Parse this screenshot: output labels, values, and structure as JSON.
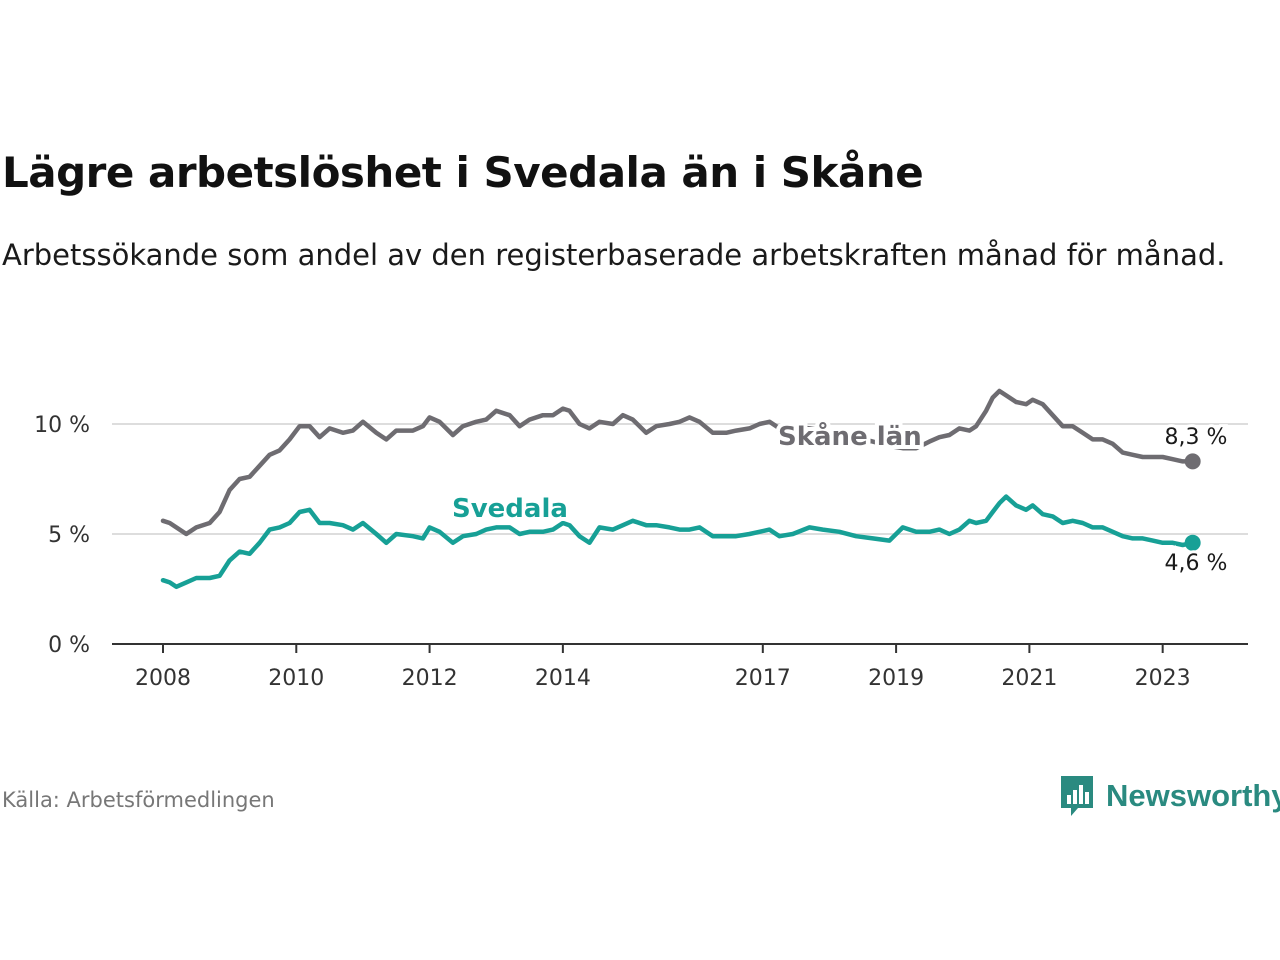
{
  "title": "Lägre arbetslöshet i Svedala än i Skåne",
  "subtitle": "Arbetssökande som andel av den registerbaserade arbetskraften månad för månad.",
  "source": "Källa: Arbetsförmedlingen",
  "brand": "Newsworthy",
  "colors": {
    "skane": "#6e6c71",
    "svedala": "#17a096",
    "grid": "#dddddd",
    "axis": "#333333",
    "brand": "#2a8a80"
  },
  "chart_data": {
    "type": "line",
    "title": "Lägre arbetslöshet i Svedala än i Skåne",
    "xlabel": "",
    "ylabel": "",
    "x_range": [
      2008.0,
      2023.5
    ],
    "ylim": [
      0,
      12
    ],
    "y_ticks": [
      {
        "value": 0,
        "label": "0 %"
      },
      {
        "value": 5,
        "label": "5 %"
      },
      {
        "value": 10,
        "label": "10 %"
      }
    ],
    "x_ticks": [
      {
        "value": 2008,
        "label": "2008"
      },
      {
        "value": 2010,
        "label": "2010"
      },
      {
        "value": 2012,
        "label": "2012"
      },
      {
        "value": 2014,
        "label": "2014"
      },
      {
        "value": 2017,
        "label": "2017"
      },
      {
        "value": 2019,
        "label": "2019"
      },
      {
        "value": 2021,
        "label": "2021"
      },
      {
        "value": 2023,
        "label": "2023"
      }
    ],
    "grid": true,
    "legend": "direct labels on lines",
    "series": [
      {
        "name": "Skåne län",
        "color": "#6e6c71",
        "end_label": "8,3 %",
        "points": [
          [
            2008.0,
            5.6
          ],
          [
            2008.1,
            5.5
          ],
          [
            2008.2,
            5.3
          ],
          [
            2008.35,
            5.0
          ],
          [
            2008.5,
            5.3
          ],
          [
            2008.7,
            5.5
          ],
          [
            2008.85,
            6.0
          ],
          [
            2009.0,
            7.0
          ],
          [
            2009.15,
            7.5
          ],
          [
            2009.3,
            7.6
          ],
          [
            2009.45,
            8.1
          ],
          [
            2009.6,
            8.6
          ],
          [
            2009.75,
            8.8
          ],
          [
            2009.9,
            9.3
          ],
          [
            2010.05,
            9.9
          ],
          [
            2010.2,
            9.9
          ],
          [
            2010.35,
            9.4
          ],
          [
            2010.5,
            9.8
          ],
          [
            2010.7,
            9.6
          ],
          [
            2010.85,
            9.7
          ],
          [
            2011.0,
            10.1
          ],
          [
            2011.2,
            9.6
          ],
          [
            2011.35,
            9.3
          ],
          [
            2011.5,
            9.7
          ],
          [
            2011.75,
            9.7
          ],
          [
            2011.9,
            9.9
          ],
          [
            2012.0,
            10.3
          ],
          [
            2012.15,
            10.1
          ],
          [
            2012.35,
            9.5
          ],
          [
            2012.5,
            9.9
          ],
          [
            2012.7,
            10.1
          ],
          [
            2012.85,
            10.2
          ],
          [
            2013.0,
            10.6
          ],
          [
            2013.2,
            10.4
          ],
          [
            2013.35,
            9.9
          ],
          [
            2013.5,
            10.2
          ],
          [
            2013.7,
            10.4
          ],
          [
            2013.85,
            10.4
          ],
          [
            2014.0,
            10.7
          ],
          [
            2014.1,
            10.6
          ],
          [
            2014.25,
            10.0
          ],
          [
            2014.4,
            9.8
          ],
          [
            2014.55,
            10.1
          ],
          [
            2014.75,
            10.0
          ],
          [
            2014.9,
            10.4
          ],
          [
            2015.05,
            10.2
          ],
          [
            2015.25,
            9.6
          ],
          [
            2015.4,
            9.9
          ],
          [
            2015.6,
            10.0
          ],
          [
            2015.75,
            10.1
          ],
          [
            2015.9,
            10.3
          ],
          [
            2016.05,
            10.1
          ],
          [
            2016.25,
            9.6
          ],
          [
            2016.45,
            9.6
          ],
          [
            2016.6,
            9.7
          ],
          [
            2016.8,
            9.8
          ],
          [
            2016.95,
            10.0
          ],
          [
            2017.1,
            10.1
          ],
          [
            2017.25,
            9.8
          ],
          [
            2017.45,
            9.9
          ],
          [
            2017.7,
            9.8
          ],
          [
            2017.9,
            9.7
          ],
          [
            2018.15,
            9.5
          ],
          [
            2018.4,
            9.4
          ],
          [
            2018.65,
            9.2
          ],
          [
            2018.9,
            9.0
          ],
          [
            2019.1,
            8.9
          ],
          [
            2019.3,
            8.9
          ],
          [
            2019.5,
            9.2
          ],
          [
            2019.65,
            9.4
          ],
          [
            2019.8,
            9.5
          ],
          [
            2019.95,
            9.8
          ],
          [
            2020.1,
            9.7
          ],
          [
            2020.2,
            9.9
          ],
          [
            2020.35,
            10.6
          ],
          [
            2020.45,
            11.2
          ],
          [
            2020.55,
            11.5
          ],
          [
            2020.65,
            11.3
          ],
          [
            2020.8,
            11.0
          ],
          [
            2020.95,
            10.9
          ],
          [
            2021.05,
            11.1
          ],
          [
            2021.2,
            10.9
          ],
          [
            2021.35,
            10.4
          ],
          [
            2021.5,
            9.9
          ],
          [
            2021.65,
            9.9
          ],
          [
            2021.8,
            9.6
          ],
          [
            2021.95,
            9.3
          ],
          [
            2022.1,
            9.3
          ],
          [
            2022.25,
            9.1
          ],
          [
            2022.4,
            8.7
          ],
          [
            2022.55,
            8.6
          ],
          [
            2022.7,
            8.5
          ],
          [
            2022.85,
            8.5
          ],
          [
            2023.0,
            8.5
          ],
          [
            2023.15,
            8.4
          ],
          [
            2023.3,
            8.3
          ],
          [
            2023.45,
            8.3
          ]
        ]
      },
      {
        "name": "Svedala",
        "color": "#17a096",
        "end_label": "4,6 %",
        "points": [
          [
            2008.0,
            2.9
          ],
          [
            2008.1,
            2.8
          ],
          [
            2008.2,
            2.6
          ],
          [
            2008.35,
            2.8
          ],
          [
            2008.5,
            3.0
          ],
          [
            2008.7,
            3.0
          ],
          [
            2008.85,
            3.1
          ],
          [
            2009.0,
            3.8
          ],
          [
            2009.15,
            4.2
          ],
          [
            2009.3,
            4.1
          ],
          [
            2009.45,
            4.6
          ],
          [
            2009.6,
            5.2
          ],
          [
            2009.75,
            5.3
          ],
          [
            2009.9,
            5.5
          ],
          [
            2010.05,
            6.0
          ],
          [
            2010.2,
            6.1
          ],
          [
            2010.35,
            5.5
          ],
          [
            2010.5,
            5.5
          ],
          [
            2010.7,
            5.4
          ],
          [
            2010.85,
            5.2
          ],
          [
            2011.0,
            5.5
          ],
          [
            2011.2,
            5.0
          ],
          [
            2011.35,
            4.6
          ],
          [
            2011.5,
            5.0
          ],
          [
            2011.75,
            4.9
          ],
          [
            2011.9,
            4.8
          ],
          [
            2012.0,
            5.3
          ],
          [
            2012.15,
            5.1
          ],
          [
            2012.35,
            4.6
          ],
          [
            2012.5,
            4.9
          ],
          [
            2012.7,
            5.0
          ],
          [
            2012.85,
            5.2
          ],
          [
            2013.0,
            5.3
          ],
          [
            2013.2,
            5.3
          ],
          [
            2013.35,
            5.0
          ],
          [
            2013.5,
            5.1
          ],
          [
            2013.7,
            5.1
          ],
          [
            2013.85,
            5.2
          ],
          [
            2014.0,
            5.5
          ],
          [
            2014.1,
            5.4
          ],
          [
            2014.25,
            4.9
          ],
          [
            2014.4,
            4.6
          ],
          [
            2014.55,
            5.3
          ],
          [
            2014.75,
            5.2
          ],
          [
            2014.9,
            5.4
          ],
          [
            2015.05,
            5.6
          ],
          [
            2015.25,
            5.4
          ],
          [
            2015.4,
            5.4
          ],
          [
            2015.6,
            5.3
          ],
          [
            2015.75,
            5.2
          ],
          [
            2015.9,
            5.2
          ],
          [
            2016.05,
            5.3
          ],
          [
            2016.25,
            4.9
          ],
          [
            2016.45,
            4.9
          ],
          [
            2016.6,
            4.9
          ],
          [
            2016.8,
            5.0
          ],
          [
            2016.95,
            5.1
          ],
          [
            2017.1,
            5.2
          ],
          [
            2017.25,
            4.9
          ],
          [
            2017.45,
            5.0
          ],
          [
            2017.7,
            5.3
          ],
          [
            2017.9,
            5.2
          ],
          [
            2018.15,
            5.1
          ],
          [
            2018.4,
            4.9
          ],
          [
            2018.65,
            4.8
          ],
          [
            2018.9,
            4.7
          ],
          [
            2019.1,
            5.3
          ],
          [
            2019.3,
            5.1
          ],
          [
            2019.5,
            5.1
          ],
          [
            2019.65,
            5.2
          ],
          [
            2019.8,
            5.0
          ],
          [
            2019.95,
            5.2
          ],
          [
            2020.1,
            5.6
          ],
          [
            2020.2,
            5.5
          ],
          [
            2020.35,
            5.6
          ],
          [
            2020.45,
            6.0
          ],
          [
            2020.55,
            6.4
          ],
          [
            2020.65,
            6.7
          ],
          [
            2020.8,
            6.3
          ],
          [
            2020.95,
            6.1
          ],
          [
            2021.05,
            6.3
          ],
          [
            2021.2,
            5.9
          ],
          [
            2021.35,
            5.8
          ],
          [
            2021.5,
            5.5
          ],
          [
            2021.65,
            5.6
          ],
          [
            2021.8,
            5.5
          ],
          [
            2021.95,
            5.3
          ],
          [
            2022.1,
            5.3
          ],
          [
            2022.25,
            5.1
          ],
          [
            2022.4,
            4.9
          ],
          [
            2022.55,
            4.8
          ],
          [
            2022.7,
            4.8
          ],
          [
            2022.85,
            4.7
          ],
          [
            2023.0,
            4.6
          ],
          [
            2023.15,
            4.6
          ],
          [
            2023.3,
            4.5
          ],
          [
            2023.45,
            4.6
          ]
        ]
      }
    ]
  }
}
